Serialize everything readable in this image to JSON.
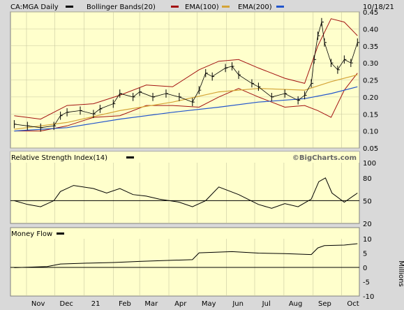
{
  "header": {
    "symbol_label": "CA:MGA Daily",
    "bb_label": "Bollinger Bands(20)",
    "ema100_label": "EMA(100)",
    "ema200_label": "EMA(200)",
    "date": "10/18/21"
  },
  "colors": {
    "panel_bg": "#ffffcc",
    "frame_bg": "#d9d9d9",
    "price": "#000000",
    "bollinger": "#a31212",
    "ema100": "#d4a437",
    "ema200": "#2255cc",
    "grid": "#c8c8a0"
  },
  "rsi_panel": {
    "title": "Relative Strength Index(14)",
    "watermark": "©BigCharts.com"
  },
  "mf_panel": {
    "title": "Money Flow",
    "unit_label": "Millions"
  },
  "chart_data": [
    {
      "type": "line",
      "title": "CA:MGA Daily",
      "ylim": [
        0.05,
        0.45
      ],
      "yticks": [
        "0.45",
        "0.40",
        "0.35",
        "0.30",
        "0.25",
        "0.20",
        "0.15",
        "0.10",
        "0.05"
      ],
      "x_labels": [
        "Nov",
        "Dec",
        "21",
        "Feb",
        "Mar",
        "Apr",
        "May",
        "Jun",
        "Jul",
        "Aug",
        "Sep",
        "Oct"
      ],
      "grid": true,
      "series": [
        {
          "name": "CA:MGA Daily",
          "kind": "ohlc-bars",
          "x": [
            "2020-10-19",
            "2020-11-02",
            "2020-11-16",
            "2020-11-30",
            "2020-12-07",
            "2020-12-14",
            "2020-12-28",
            "2021-01-11",
            "2021-01-18",
            "2021-02-01",
            "2021-02-08",
            "2021-02-22",
            "2021-03-01",
            "2021-03-15",
            "2021-03-29",
            "2021-04-12",
            "2021-04-26",
            "2021-05-03",
            "2021-05-10",
            "2021-05-17",
            "2021-05-31",
            "2021-06-07",
            "2021-06-14",
            "2021-06-28",
            "2021-07-05",
            "2021-07-19",
            "2021-08-02",
            "2021-08-16",
            "2021-08-23",
            "2021-08-30",
            "2021-09-02",
            "2021-09-06",
            "2021-09-10",
            "2021-09-13",
            "2021-09-20",
            "2021-09-27",
            "2021-10-04",
            "2021-10-11",
            "2021-10-18"
          ],
          "values": [
            0.12,
            0.115,
            0.11,
            0.115,
            0.145,
            0.155,
            0.16,
            0.15,
            0.165,
            0.18,
            0.21,
            0.2,
            0.215,
            0.2,
            0.21,
            0.2,
            0.185,
            0.22,
            0.27,
            0.26,
            0.285,
            0.29,
            0.265,
            0.24,
            0.23,
            0.2,
            0.21,
            0.19,
            0.205,
            0.24,
            0.31,
            0.38,
            0.42,
            0.36,
            0.3,
            0.28,
            0.31,
            0.3,
            0.36
          ]
        },
        {
          "name": "Bollinger Bands(20) Upper",
          "x": [
            "2020-10-19",
            "2020-11-16",
            "2020-12-14",
            "2021-01-11",
            "2021-02-08",
            "2021-03-08",
            "2021-04-05",
            "2021-05-03",
            "2021-05-24",
            "2021-06-14",
            "2021-07-05",
            "2021-08-02",
            "2021-08-23",
            "2021-09-06",
            "2021-09-20",
            "2021-10-04",
            "2021-10-18"
          ],
          "values": [
            0.145,
            0.135,
            0.175,
            0.18,
            0.205,
            0.235,
            0.23,
            0.28,
            0.305,
            0.31,
            0.285,
            0.255,
            0.24,
            0.35,
            0.43,
            0.42,
            0.38
          ]
        },
        {
          "name": "Bollinger Bands(20) Lower",
          "x": [
            "2020-10-19",
            "2020-11-16",
            "2020-12-14",
            "2021-01-11",
            "2021-02-08",
            "2021-03-08",
            "2021-04-05",
            "2021-05-03",
            "2021-05-24",
            "2021-06-14",
            "2021-07-05",
            "2021-08-02",
            "2021-08-23",
            "2021-09-06",
            "2021-09-20",
            "2021-10-04",
            "2021-10-18"
          ],
          "values": [
            0.1,
            0.1,
            0.115,
            0.14,
            0.145,
            0.175,
            0.175,
            0.17,
            0.2,
            0.225,
            0.2,
            0.17,
            0.175,
            0.16,
            0.14,
            0.22,
            0.27
          ]
        },
        {
          "name": "EMA(100)",
          "x": [
            "2020-10-19",
            "2020-12-14",
            "2021-02-08",
            "2021-04-05",
            "2021-05-24",
            "2021-07-05",
            "2021-08-23",
            "2021-09-20",
            "2021-10-18"
          ],
          "values": [
            0.105,
            0.125,
            0.16,
            0.185,
            0.215,
            0.225,
            0.22,
            0.245,
            0.265
          ]
        },
        {
          "name": "EMA(200)",
          "x": [
            "2020-10-19",
            "2020-12-14",
            "2021-02-08",
            "2021-04-05",
            "2021-05-24",
            "2021-07-05",
            "2021-08-23",
            "2021-09-20",
            "2021-10-18"
          ],
          "values": [
            0.1,
            0.11,
            0.135,
            0.155,
            0.17,
            0.185,
            0.195,
            0.21,
            0.23
          ]
        }
      ]
    },
    {
      "type": "line",
      "title": "Relative Strength Index(14)",
      "ylim": [
        20,
        100
      ],
      "yticks": [
        "100",
        "80",
        "50",
        "20"
      ],
      "reference_line": 50,
      "series": [
        {
          "name": "Relative Strength Index(14)",
          "x": [
            "2020-10-19",
            "2020-11-02",
            "2020-11-16",
            "2020-11-30",
            "2020-12-07",
            "2020-12-21",
            "2021-01-11",
            "2021-01-25",
            "2021-02-08",
            "2021-02-22",
            "2021-03-08",
            "2021-03-22",
            "2021-04-12",
            "2021-04-26",
            "2021-05-10",
            "2021-05-24",
            "2021-06-14",
            "2021-07-05",
            "2021-07-19",
            "2021-08-02",
            "2021-08-16",
            "2021-08-30",
            "2021-09-07",
            "2021-09-14",
            "2021-09-21",
            "2021-10-04",
            "2021-10-18"
          ],
          "values": [
            50,
            45,
            42,
            50,
            62,
            70,
            66,
            60,
            66,
            58,
            56,
            52,
            48,
            42,
            50,
            68,
            58,
            45,
            40,
            46,
            42,
            52,
            75,
            80,
            60,
            48,
            60
          ]
        }
      ]
    },
    {
      "type": "area",
      "title": "Money Flow",
      "ylabel": "Millions",
      "ylim": [
        -10,
        10
      ],
      "yticks": [
        "10",
        "5",
        "0",
        "-5",
        "-10"
      ],
      "series": [
        {
          "name": "Money Flow",
          "x": [
            "2020-10-19",
            "2020-11-23",
            "2020-12-07",
            "2021-01-04",
            "2021-02-01",
            "2021-03-01",
            "2021-04-05",
            "2021-04-26",
            "2021-05-03",
            "2021-06-07",
            "2021-07-05",
            "2021-08-02",
            "2021-08-30",
            "2021-09-06",
            "2021-09-13",
            "2021-10-04",
            "2021-10-18"
          ],
          "values": [
            -0.1,
            0.3,
            1.2,
            1.5,
            1.7,
            2.1,
            2.5,
            2.7,
            5.1,
            5.5,
            5.0,
            4.8,
            4.5,
            6.8,
            7.6,
            7.8,
            8.3
          ]
        }
      ]
    }
  ]
}
